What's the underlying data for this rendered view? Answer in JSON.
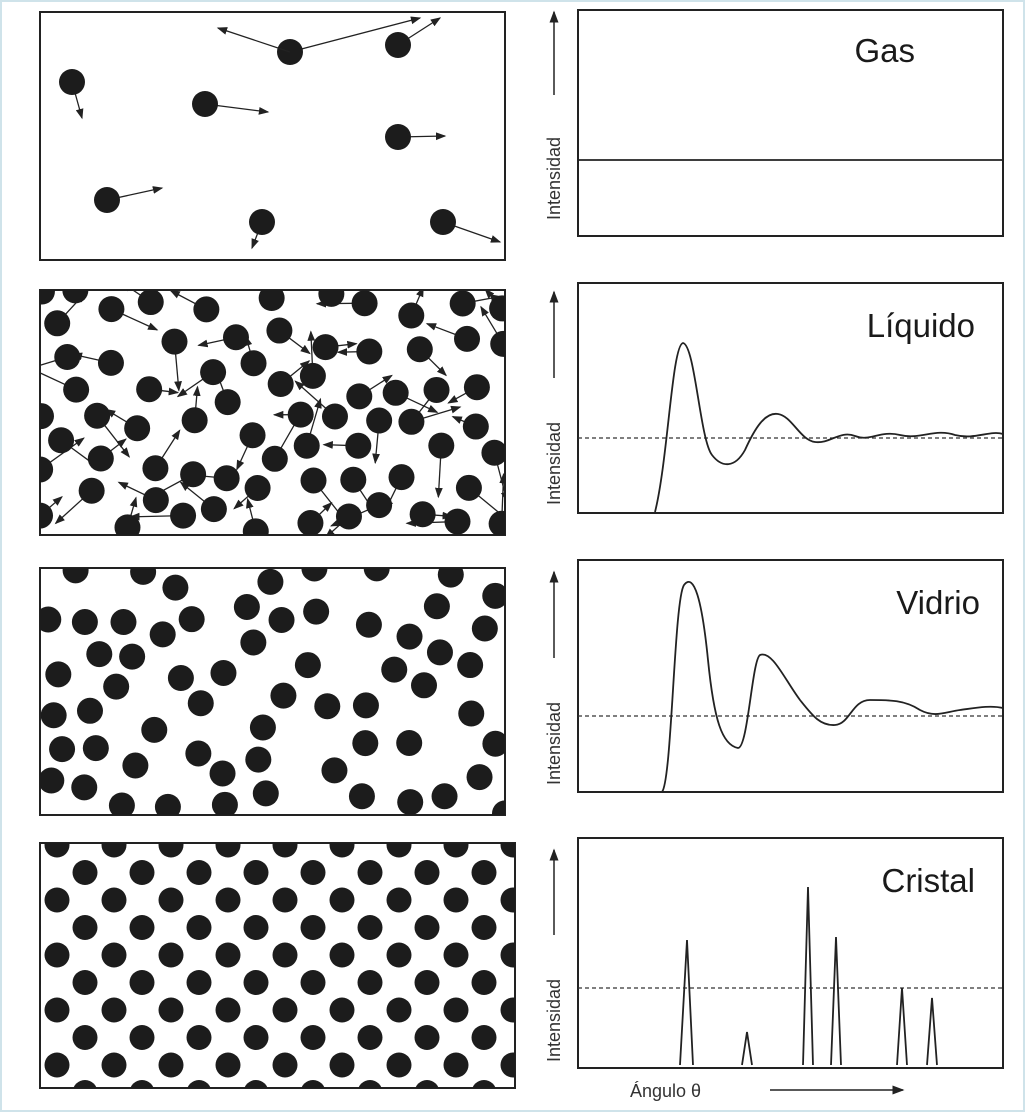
{
  "panels": [
    {
      "label": "Gas",
      "y_axis": "Intensidad"
    },
    {
      "label": "Líquido",
      "y_axis": "Intensidad"
    },
    {
      "label": "Vidrio",
      "y_axis": "Intensidad"
    },
    {
      "label": "Cristal",
      "y_axis": "Intensidad"
    }
  ],
  "x_axis": "Ángulo θ"
}
